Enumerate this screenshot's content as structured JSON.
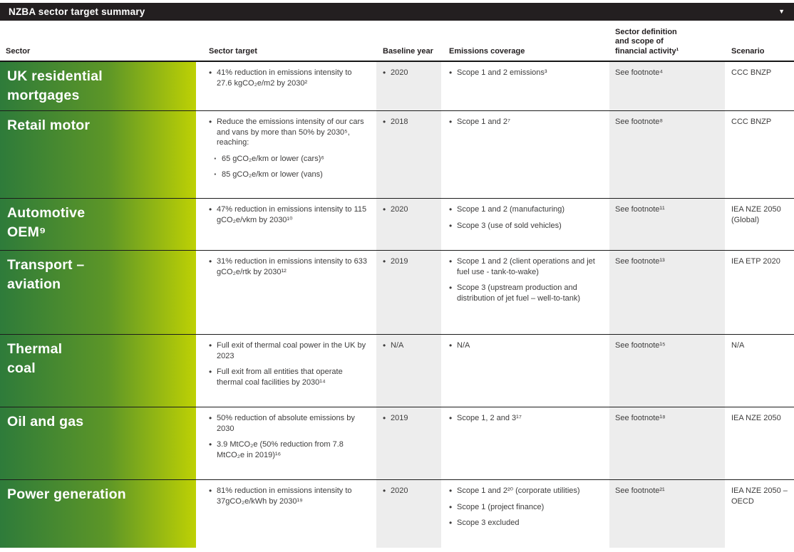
{
  "title_bar": {
    "title": "NZBA sector target summary"
  },
  "icons": {
    "dropdown": "▼",
    "bullet": "•",
    "sub_bullet": "·"
  },
  "colors": {
    "title_bar_bg": "#231f20",
    "gradient_left": "#2e7b3a",
    "gradient_right": "#bed104",
    "gray_column_bg": "#ededed",
    "body_text": "#3d3c3c",
    "row_line": "#1c1c1c"
  },
  "header": {
    "sector": "Sector",
    "target": "Sector target",
    "baseline": "Baseline year",
    "emissions": "Emissions coverage",
    "definition": "Sector definition\nand scope of\nfinancial activity¹",
    "scenario": "Scenario"
  },
  "rows": [
    {
      "sector": "UK residential\nmortgages",
      "targets": [
        {
          "text": "41% reduction in emissions intensity to 27.6 kgCO₂e/m2 by 2030²",
          "subs": []
        }
      ],
      "baseline": "2020",
      "emissions": [
        "Scope 1 and 2 emissions³"
      ],
      "definition": "See footnote⁴",
      "scenario": "CCC BNZP"
    },
    {
      "sector": "Retail motor",
      "targets": [
        {
          "text": "Reduce the emissions intensity of our cars and vans by more than 50% by 2030⁵, reaching:",
          "subs": [
            "65 gCO₂e/km or lower (cars)⁶",
            "85 gCO₂e/km or lower (vans)"
          ]
        }
      ],
      "baseline": "2018",
      "emissions": [
        "Scope 1 and 2⁷"
      ],
      "definition": "See footnote⁸",
      "scenario": "CCC BNZP"
    },
    {
      "sector": "Automotive\nOEM⁹",
      "targets": [
        {
          "text": "47% reduction in emissions intensity to 115 gCO₂e/vkm by 2030¹⁰",
          "subs": []
        }
      ],
      "baseline": "2020",
      "emissions": [
        "Scope 1 and 2 (manufacturing)",
        "Scope 3 (use of sold vehicles)"
      ],
      "definition": "See footnote¹¹",
      "scenario": "IEA NZE 2050 (Global)"
    },
    {
      "sector": "Transport –\naviation",
      "targets": [
        {
          "text": "31% reduction in emissions intensity to 633 gCO₂e/rtk by 2030¹²",
          "subs": []
        }
      ],
      "baseline": "2019",
      "emissions": [
        "Scope 1 and 2 (client operations and jet fuel use - tank-to-wake)",
        "Scope 3 (upstream production and distribution of jet fuel – well-to-tank)"
      ],
      "definition": "See footnote¹³",
      "scenario": "IEA ETP 2020"
    },
    {
      "sector": "Thermal\ncoal",
      "targets": [
        {
          "text": "Full exit of thermal coal power in the UK by 2023",
          "subs": []
        },
        {
          "text": "Full exit from all entities that operate thermal coal facilities by 2030¹⁴",
          "subs": []
        }
      ],
      "baseline": "N/A",
      "emissions": [
        "N/A"
      ],
      "definition": "See footnote¹⁵",
      "scenario": "N/A"
    },
    {
      "sector": "Oil and gas",
      "targets": [
        {
          "text": "50% reduction of absolute emissions by 2030",
          "subs": []
        },
        {
          "text": "3.9 MtCO₂e (50% reduction from 7.8 MtCO₂e in 2019)¹⁶",
          "subs": []
        }
      ],
      "baseline": "2019",
      "emissions": [
        "Scope 1, 2 and 3¹⁷"
      ],
      "definition": "See footnote¹⁸",
      "scenario": "IEA NZE 2050"
    },
    {
      "sector": "Power generation",
      "targets": [
        {
          "text": "81% reduction in emissions intensity to 37gCO₂e/kWh by 2030¹⁹",
          "subs": []
        }
      ],
      "baseline": "2020",
      "emissions": [
        "Scope 1 and 2²⁰ (corporate utilities)",
        "Scope 1 (project finance)",
        "Scope 3 excluded"
      ],
      "definition": "See footnote²¹",
      "scenario": "IEA NZE 2050 – OECD"
    }
  ]
}
